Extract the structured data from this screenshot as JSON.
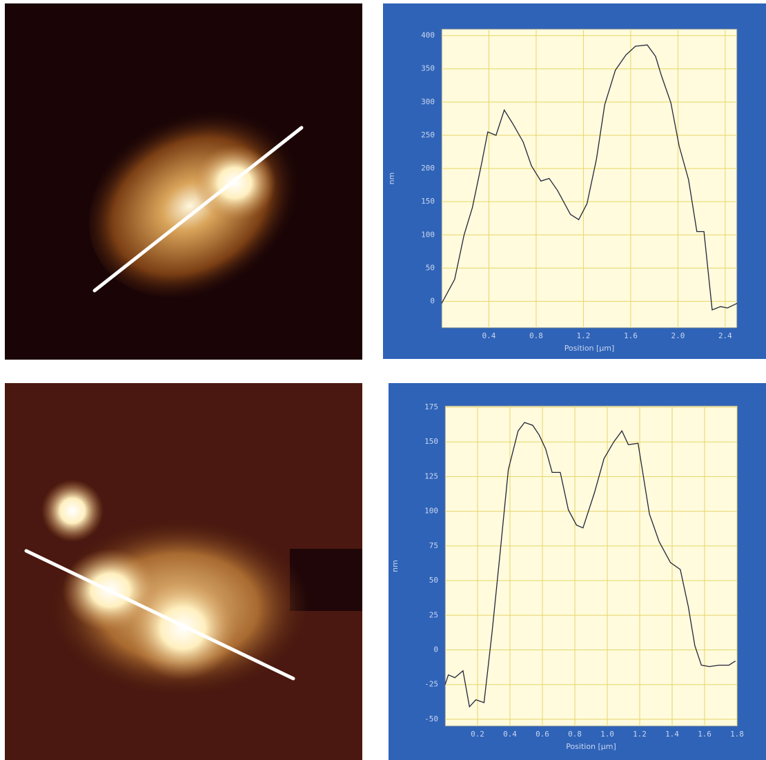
{
  "chart_data": [
    {
      "type": "line",
      "x_label": "Position [µm]",
      "y_label": "nm",
      "color": "#23233a",
      "grid": true,
      "xlim": [
        0,
        2.5
      ],
      "ylim": [
        -40,
        410
      ],
      "xticks": [
        0.4,
        0.8,
        1.2,
        1.6,
        {
          "value": 2,
          "label": "2.0"
        },
        2.4
      ],
      "yticks": [
        0,
        50,
        100,
        150,
        200,
        250,
        300,
        350,
        400
      ],
      "x": [
        0,
        0.11,
        0.19,
        0.26,
        0.34,
        0.39,
        0.46,
        0.53,
        0.6,
        0.69,
        0.76,
        0.84,
        0.91,
        0.98,
        1.09,
        1.16,
        1.23,
        1.31,
        1.38,
        1.47,
        1.56,
        1.64,
        1.74,
        1.81,
        1.86,
        1.94,
        2.01,
        2.09,
        2.16,
        2.22,
        2.29,
        2.36,
        2.42,
        2.5
      ],
      "values": [
        -3,
        33,
        100,
        141,
        209,
        255,
        250,
        288,
        268,
        240,
        204,
        181,
        185,
        167,
        131,
        123,
        147,
        214,
        296,
        348,
        371,
        384,
        386,
        369,
        340,
        299,
        234,
        183,
        105,
        105,
        -13,
        -8,
        -10,
        -3
      ]
    },
    {
      "type": "line",
      "x_label": "Position [µm]",
      "y_label": "nm",
      "color": "#23233a",
      "grid": true,
      "xlim": [
        0,
        1.8
      ],
      "ylim": [
        -55,
        176
      ],
      "xticks": [
        0.2,
        0.4,
        0.6,
        0.8,
        {
          "value": 1,
          "label": "1.0"
        },
        1.2,
        1.4,
        1.6,
        1.8
      ],
      "yticks": [
        -50,
        -25,
        0,
        25,
        50,
        75,
        100,
        125,
        150,
        175
      ],
      "x": [
        0,
        0.02,
        0.06,
        0.11,
        0.15,
        0.19,
        0.24,
        0.29,
        0.34,
        0.39,
        0.45,
        0.49,
        0.54,
        0.58,
        0.62,
        0.66,
        0.71,
        0.76,
        0.81,
        0.85,
        0.92,
        0.98,
        1.04,
        1.09,
        1.13,
        1.19,
        1.26,
        1.32,
        1.39,
        1.45,
        1.5,
        1.54,
        1.58,
        1.63,
        1.69,
        1.75,
        1.79
      ],
      "values": [
        -25,
        -18,
        -20,
        -15,
        -41,
        -36,
        -38,
        13,
        71,
        130,
        158,
        164,
        162,
        155,
        145,
        128,
        128,
        101,
        90,
        88,
        113,
        138,
        150,
        158,
        148,
        149,
        98,
        78,
        63,
        58,
        31,
        3,
        -11,
        -12,
        -11,
        -11,
        -8
      ]
    }
  ]
}
